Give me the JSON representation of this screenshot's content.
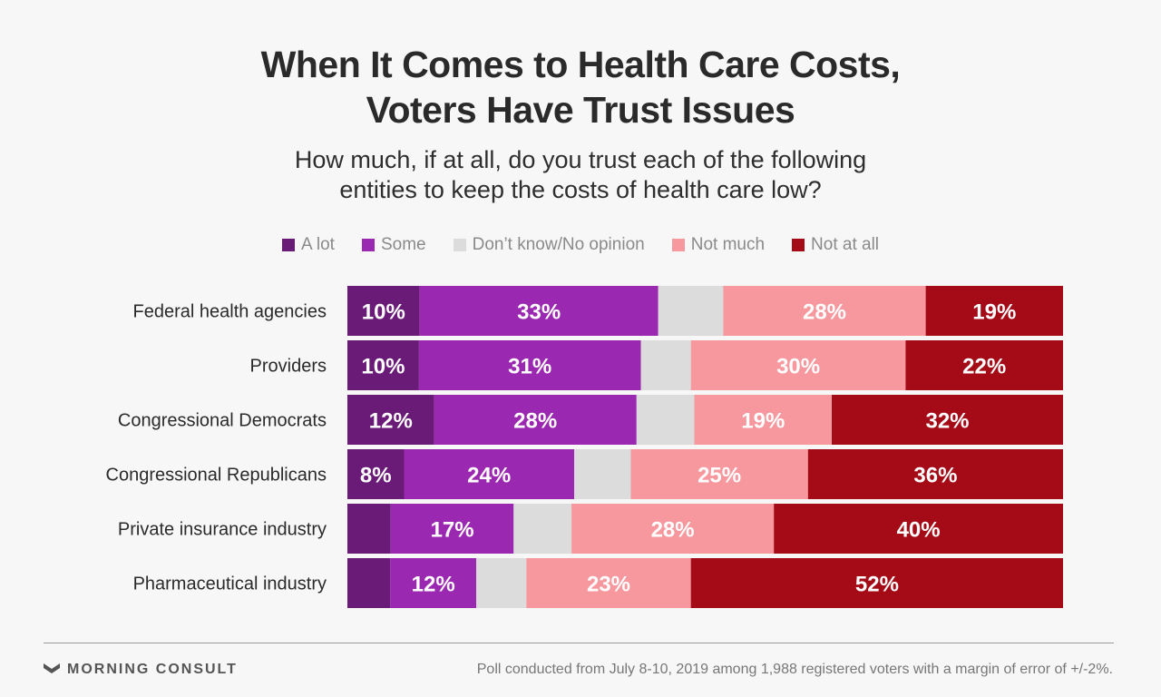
{
  "title_lines": [
    "When It Comes to Health Care Costs,",
    "Voters Have Trust Issues"
  ],
  "subtitle_lines": [
    "How much, if at all, do you trust each of the following",
    "entities to keep the costs of health care low?"
  ],
  "footer": {
    "brand": "MORNING CONSULT",
    "brand_icon": "chevron-mark-icon",
    "note": "Poll conducted from July 8-10, 2019 among 1,988 registered voters with a margin of error of +/-2%."
  },
  "chart_data": {
    "type": "bar",
    "orientation": "horizontal",
    "stacked": true,
    "normalized_to": 100,
    "legend_placement": "top",
    "grid": false,
    "categories": [
      "Federal health agencies",
      "Providers",
      "Congressional Democrats",
      "Congressional Republicans",
      "Private insurance industry",
      "Pharmaceutical industry"
    ],
    "series": [
      {
        "name": "A lot",
        "color": "#6a1b78",
        "label_color": "#ffffff",
        "values": [
          10,
          10,
          12,
          8,
          6,
          6
        ],
        "labels": [
          "10%",
          "10%",
          "12%",
          "8%",
          "",
          ""
        ]
      },
      {
        "name": "Some",
        "color": "#9b28b0",
        "label_color": "#ffffff",
        "values": [
          33,
          31,
          28,
          24,
          17,
          12
        ],
        "labels": [
          "33%",
          "31%",
          "28%",
          "24%",
          "17%",
          "12%"
        ]
      },
      {
        "name": "Don’t know/No opinion",
        "color": "#dcdcdc",
        "label_color": "#ffffff",
        "values": [
          9,
          7,
          8,
          8,
          8,
          7
        ],
        "labels": [
          "",
          "",
          "",
          "",
          "",
          ""
        ]
      },
      {
        "name": "Not much",
        "color": "#f6989d",
        "label_color": "#ffffff",
        "values": [
          28,
          30,
          19,
          25,
          28,
          23
        ],
        "labels": [
          "28%",
          "30%",
          "19%",
          "25%",
          "28%",
          "23%"
        ]
      },
      {
        "name": "Not at all",
        "color": "#a50b17",
        "label_color": "#ffffff",
        "values": [
          19,
          22,
          32,
          36,
          40,
          52
        ],
        "labels": [
          "19%",
          "22%",
          "32%",
          "36%",
          "40%",
          "52%"
        ]
      }
    ]
  }
}
